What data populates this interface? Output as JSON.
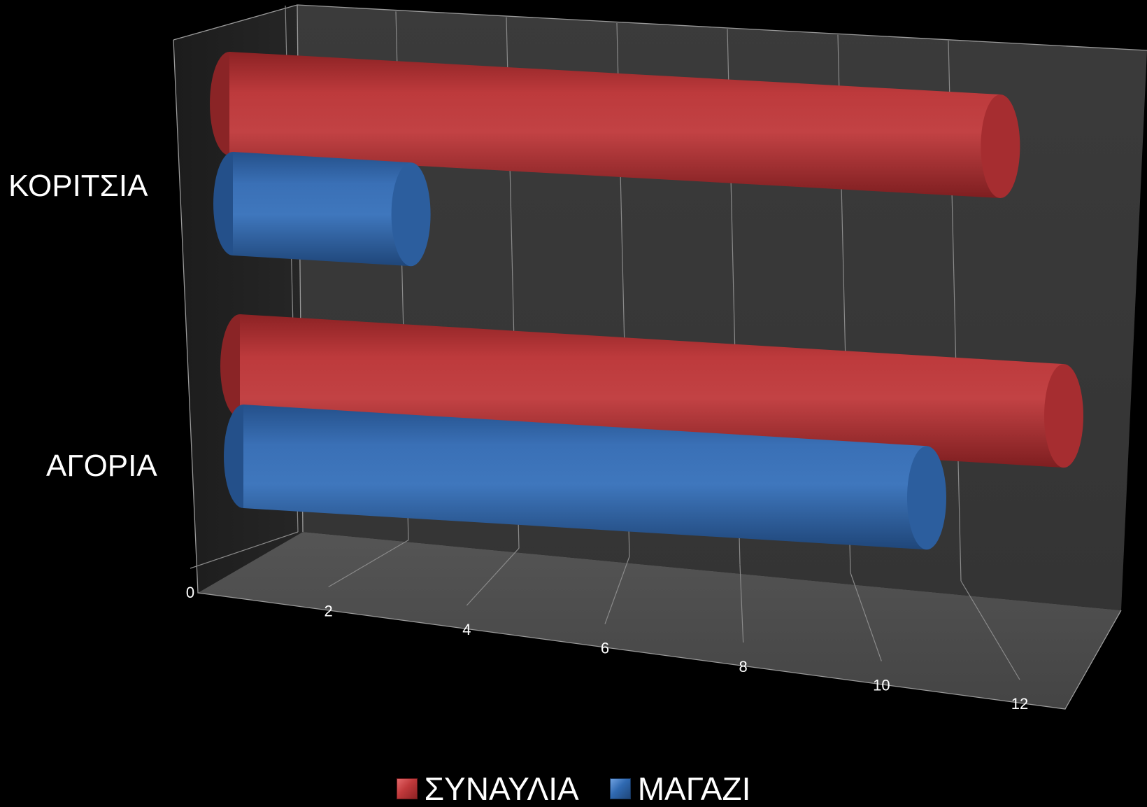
{
  "chart_data": {
    "type": "bar",
    "orientation": "horizontal",
    "style": "3d-cylinder",
    "categories": [
      "ΚΟΡΙΤΣΙΑ",
      "ΑΓΟΡΙΑ"
    ],
    "series": [
      {
        "name": "ΣΥΝΑΥΛΙΑ",
        "color": "#c0393b",
        "values": [
          12,
          12
        ]
      },
      {
        "name": "ΜΑΓΑΖΙ",
        "color": "#2f69b1",
        "values": [
          3,
          10
        ]
      }
    ],
    "x_ticks": [
      "0",
      "2",
      "4",
      "6",
      "8",
      "10",
      "12"
    ],
    "xlim": [
      0,
      12
    ],
    "grid": true,
    "legend": "bottom",
    "background": "#000000",
    "wall_color": "#3a3a3a",
    "floor_color": "#4a4a4a",
    "gridline_color": "#8a8a8a"
  }
}
